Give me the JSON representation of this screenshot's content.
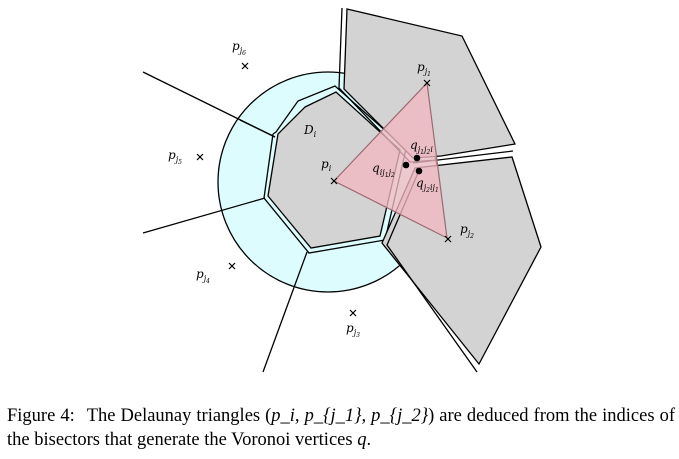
{
  "figure": {
    "labels": {
      "p_i": {
        "base": "p",
        "sub": "i",
        "subsub": ""
      },
      "p_j1": {
        "base": "p",
        "sub": "j",
        "subsub": "1"
      },
      "p_j2": {
        "base": "p",
        "sub": "j",
        "subsub": "2"
      },
      "p_j3": {
        "base": "p",
        "sub": "j",
        "subsub": "3"
      },
      "p_j4": {
        "base": "p",
        "sub": "j",
        "subsub": "4"
      },
      "p_j5": {
        "base": "p",
        "sub": "j",
        "subsub": "5"
      },
      "p_j6": {
        "base": "p",
        "sub": "j",
        "subsub": "6"
      },
      "D_i": {
        "base": "D",
        "sub": "i"
      },
      "q_ij1j2": {
        "base": "q",
        "sub": "ij",
        "subsub": "1",
        "sub2": "j",
        "subsub2": "2"
      },
      "q_j1j2i": {
        "base": "q",
        "sub": "j",
        "subsub": "1",
        "sub2": "j",
        "subsub2": "2",
        "sub3": "i"
      },
      "q_j2ij1": {
        "base": "q",
        "sub": "j",
        "subsub": "2",
        "sub2": "ij",
        "subsub2": "1"
      }
    },
    "colors": {
      "disk_fill": "#dcfcfd",
      "cell_fill": "#d3d3d3",
      "triangle_fill": "#f2b8c2",
      "triangle_stroke": "#9a6a72",
      "line": "#000000"
    }
  },
  "caption": {
    "label": "Figure 4:",
    "text_before": "The Delaunay triangles (",
    "math_tuple": "p_i, p_{j_1}, p_{j_2}",
    "text_middle": ") are deduced from the indices of the bisectors that generate the Voronoi vertices ",
    "math_q": "q",
    "text_end": "."
  }
}
